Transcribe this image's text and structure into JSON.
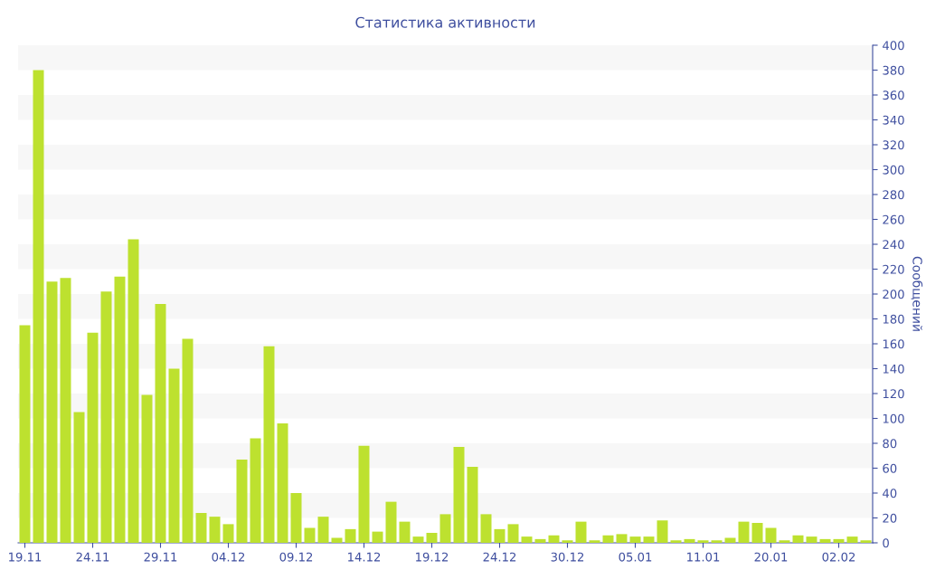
{
  "chart_data": {
    "type": "bar",
    "title": "Статистика активности",
    "ylabel": "Сообщений",
    "categories": [
      "19.11",
      null,
      null,
      null,
      null,
      "24.11",
      null,
      null,
      null,
      null,
      "29.11",
      null,
      null,
      null,
      null,
      "04.12",
      null,
      null,
      null,
      null,
      "09.12",
      null,
      null,
      null,
      null,
      "14.12",
      null,
      null,
      null,
      null,
      "19.12",
      null,
      null,
      null,
      null,
      "24.12",
      null,
      null,
      null,
      null,
      "30.12",
      null,
      null,
      null,
      null,
      "05.01",
      null,
      null,
      null,
      null,
      "11.01",
      null,
      null,
      null,
      null,
      "20.01",
      null,
      null,
      null,
      null,
      "02.02",
      null,
      null
    ],
    "values": [
      175,
      380,
      210,
      213,
      105,
      169,
      202,
      214,
      244,
      119,
      192,
      140,
      164,
      24,
      21,
      15,
      67,
      84,
      158,
      96,
      40,
      12,
      21,
      4,
      11,
      78,
      9,
      33,
      17,
      5,
      8,
      23,
      77,
      61,
      23,
      11,
      15,
      5,
      3,
      6,
      2,
      17,
      2,
      6,
      7,
      5,
      5,
      18,
      2,
      3,
      2,
      2,
      4,
      17,
      16,
      12,
      2,
      6,
      5,
      3,
      3,
      5,
      2
    ],
    "color": "#bde12f",
    "ylim": [
      0,
      400
    ],
    "yticks": [
      0,
      20,
      40,
      60,
      80,
      100,
      120,
      140,
      160,
      180,
      200,
      220,
      240,
      260,
      280,
      300,
      320,
      340,
      360,
      380,
      400
    ],
    "legend": false,
    "bands": [
      {
        "axis": "y",
        "from": 20,
        "to": 40,
        "color": "#f7f7f7"
      },
      {
        "axis": "y",
        "from": 60,
        "to": 80,
        "color": "#f7f7f7"
      },
      {
        "axis": "y",
        "from": 100,
        "to": 120,
        "color": "#f7f7f7"
      },
      {
        "axis": "y",
        "from": 140,
        "to": 160,
        "color": "#f7f7f7"
      },
      {
        "axis": "y",
        "from": 180,
        "to": 200,
        "color": "#f7f7f7"
      },
      {
        "axis": "y",
        "from": 220,
        "to": 240,
        "color": "#f7f7f7"
      },
      {
        "axis": "y",
        "from": 260,
        "to": 280,
        "color": "#f7f7f7"
      },
      {
        "axis": "y",
        "from": 300,
        "to": 320,
        "color": "#f7f7f7"
      },
      {
        "axis": "y",
        "from": 340,
        "to": 360,
        "color": "#f7f7f7"
      },
      {
        "axis": "y",
        "from": 380,
        "to": 400,
        "color": "#f7f7f7"
      }
    ]
  }
}
